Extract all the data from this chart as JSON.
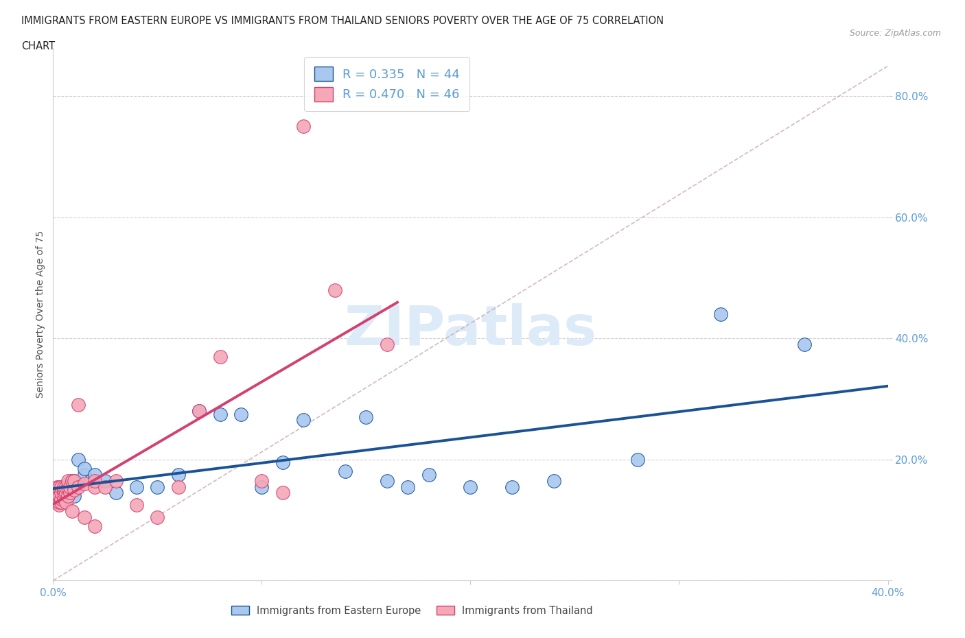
{
  "title_line1": "IMMIGRANTS FROM EASTERN EUROPE VS IMMIGRANTS FROM THAILAND SENIORS POVERTY OVER THE AGE OF 75 CORRELATION",
  "title_line2": "CHART",
  "source": "Source: ZipAtlas.com",
  "ylabel": "Seniors Poverty Over the Age of 75",
  "xlabel_blue": "Immigrants from Eastern Europe",
  "xlabel_pink": "Immigrants from Thailand",
  "R_blue": 0.335,
  "N_blue": 44,
  "R_pink": 0.47,
  "N_pink": 46,
  "color_blue": "#A8C8F0",
  "color_pink": "#F4A8B8",
  "line_color_blue": "#1A5296",
  "line_color_pink": "#D44070",
  "diag_color": "#C8A8B0",
  "xlim": [
    0.0,
    0.4
  ],
  "ylim": [
    0.0,
    0.88
  ],
  "xticks": [
    0.0,
    0.1,
    0.2,
    0.3,
    0.4
  ],
  "yticks": [
    0.0,
    0.2,
    0.4,
    0.6,
    0.8
  ],
  "blue_x": [
    0.002,
    0.003,
    0.004,
    0.004,
    0.005,
    0.005,
    0.005,
    0.006,
    0.006,
    0.007,
    0.007,
    0.008,
    0.009,
    0.009,
    0.01,
    0.01,
    0.01,
    0.012,
    0.015,
    0.015,
    0.018,
    0.02,
    0.025,
    0.03,
    0.04,
    0.05,
    0.06,
    0.07,
    0.08,
    0.09,
    0.1,
    0.11,
    0.12,
    0.14,
    0.15,
    0.16,
    0.17,
    0.18,
    0.2,
    0.22,
    0.24,
    0.28,
    0.32,
    0.36
  ],
  "blue_y": [
    0.14,
    0.135,
    0.145,
    0.15,
    0.13,
    0.14,
    0.155,
    0.14,
    0.155,
    0.145,
    0.16,
    0.155,
    0.165,
    0.155,
    0.14,
    0.155,
    0.165,
    0.2,
    0.175,
    0.185,
    0.165,
    0.175,
    0.165,
    0.145,
    0.155,
    0.155,
    0.175,
    0.28,
    0.275,
    0.275,
    0.155,
    0.195,
    0.265,
    0.18,
    0.27,
    0.165,
    0.155,
    0.175,
    0.155,
    0.155,
    0.165,
    0.2,
    0.44,
    0.39
  ],
  "pink_x": [
    0.002,
    0.002,
    0.002,
    0.003,
    0.003,
    0.003,
    0.003,
    0.004,
    0.004,
    0.004,
    0.004,
    0.005,
    0.005,
    0.005,
    0.005,
    0.006,
    0.006,
    0.006,
    0.007,
    0.007,
    0.007,
    0.008,
    0.008,
    0.009,
    0.009,
    0.01,
    0.01,
    0.012,
    0.012,
    0.015,
    0.015,
    0.02,
    0.02,
    0.02,
    0.025,
    0.03,
    0.04,
    0.05,
    0.06,
    0.07,
    0.08,
    0.1,
    0.11,
    0.12,
    0.135,
    0.16
  ],
  "pink_y": [
    0.13,
    0.14,
    0.155,
    0.125,
    0.13,
    0.14,
    0.155,
    0.13,
    0.135,
    0.145,
    0.155,
    0.135,
    0.145,
    0.15,
    0.155,
    0.13,
    0.145,
    0.155,
    0.14,
    0.155,
    0.165,
    0.145,
    0.155,
    0.115,
    0.165,
    0.15,
    0.165,
    0.155,
    0.29,
    0.105,
    0.16,
    0.09,
    0.155,
    0.165,
    0.155,
    0.165,
    0.125,
    0.105,
    0.155,
    0.28,
    0.37,
    0.165,
    0.145,
    0.75,
    0.48,
    0.39
  ],
  "pink_line_xlim": [
    0.0,
    0.165
  ],
  "watermark": "ZIPatlas",
  "watermark_color": "#DDEAF8",
  "watermark_fontsize": 58,
  "title_fontsize": 10.5,
  "axis_label_color": "#5B9BD5",
  "tick_fontsize": 11
}
